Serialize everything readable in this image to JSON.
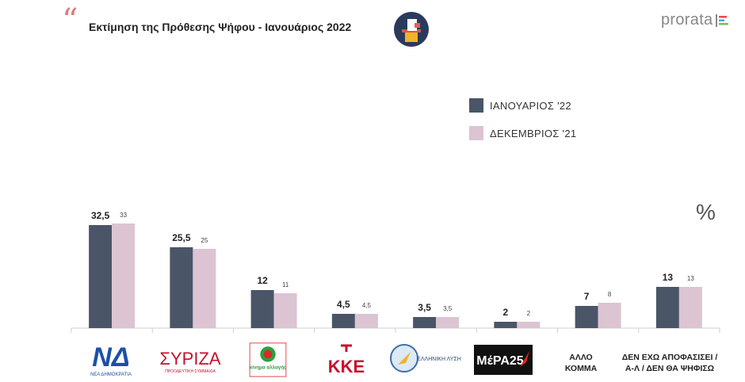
{
  "header": {
    "quote_mark": "“",
    "title": "Εκτίμηση της Πρόθεσης Ψήφου - Ιανουάριος 2022",
    "brand": "prorata"
  },
  "chart_data": {
    "type": "bar",
    "categories": [
      "ΝΕΑ ΔΗΜΟΚΡΑΤΙΑ",
      "ΣΥΡΙΖΑ",
      "ΚΙΝΗΜΑ ΑΛΛΑΓΗΣ",
      "ΚΚΕ",
      "ΕΛΛΗΝΙΚΗ ΛΥΣΗ",
      "ΜέΡΑ25",
      "ΑΛΛΟ ΚΟΜΜΑ",
      "ΔΕΝ ΕΧΩ ΑΠΟΦΑΣΙΣΕΙ / Α-Λ / ΔΕΝ ΘΑ ΨΗΦΙΣΩ"
    ],
    "series": [
      {
        "name": "ΙΑΝΟΥΑΡΙΟΣ '22",
        "color": "#4a5568",
        "values": [
          32.5,
          25.5,
          12,
          4.5,
          3.5,
          2,
          7,
          13
        ],
        "labels": [
          "32,5",
          "25,5",
          "12",
          "4,5",
          "3,5",
          "2",
          "7",
          "13"
        ]
      },
      {
        "name": "ΔΕΚΕΜΒΡΙΟΣ '21",
        "color": "#dcc4d3",
        "values": [
          33,
          25,
          11,
          4.5,
          3.5,
          2,
          8,
          13
        ],
        "labels": [
          "33",
          "25",
          "11",
          "4,5",
          "3,5",
          "2",
          "8",
          "13"
        ]
      }
    ],
    "unit": "%",
    "legend_position": "top-right",
    "grid": false
  },
  "logos": {
    "nd_text": "ΝΕΑ ΔΗΜΟΚΡΑΤΙΑ",
    "syriza_text": "ΣΥΡΙΖΑ",
    "syriza_sub": "ΠΡΟΟΔΕΥΤΙΚΗ ΣΥΜΜΑΧΙΑ",
    "kinal_text": "κίνημα αλλαγής",
    "kke_text": "ΚΚΕ",
    "el_text": "ΕΛΛΗΝΙΚΗ ΛΥΣΗ",
    "mera_text": "ΜέΡΑ25",
    "other_text": [
      "ΑΛΛΟ",
      "ΚΟΜΜΑ"
    ],
    "undecided_text": [
      "ΔΕΝ ΕΧΩ ΑΠΟΦΑΣΙΣΕΙ /",
      "Α-Λ / ΔΕΝ ΘΑ ΨΗΦΙΣΩ"
    ]
  }
}
